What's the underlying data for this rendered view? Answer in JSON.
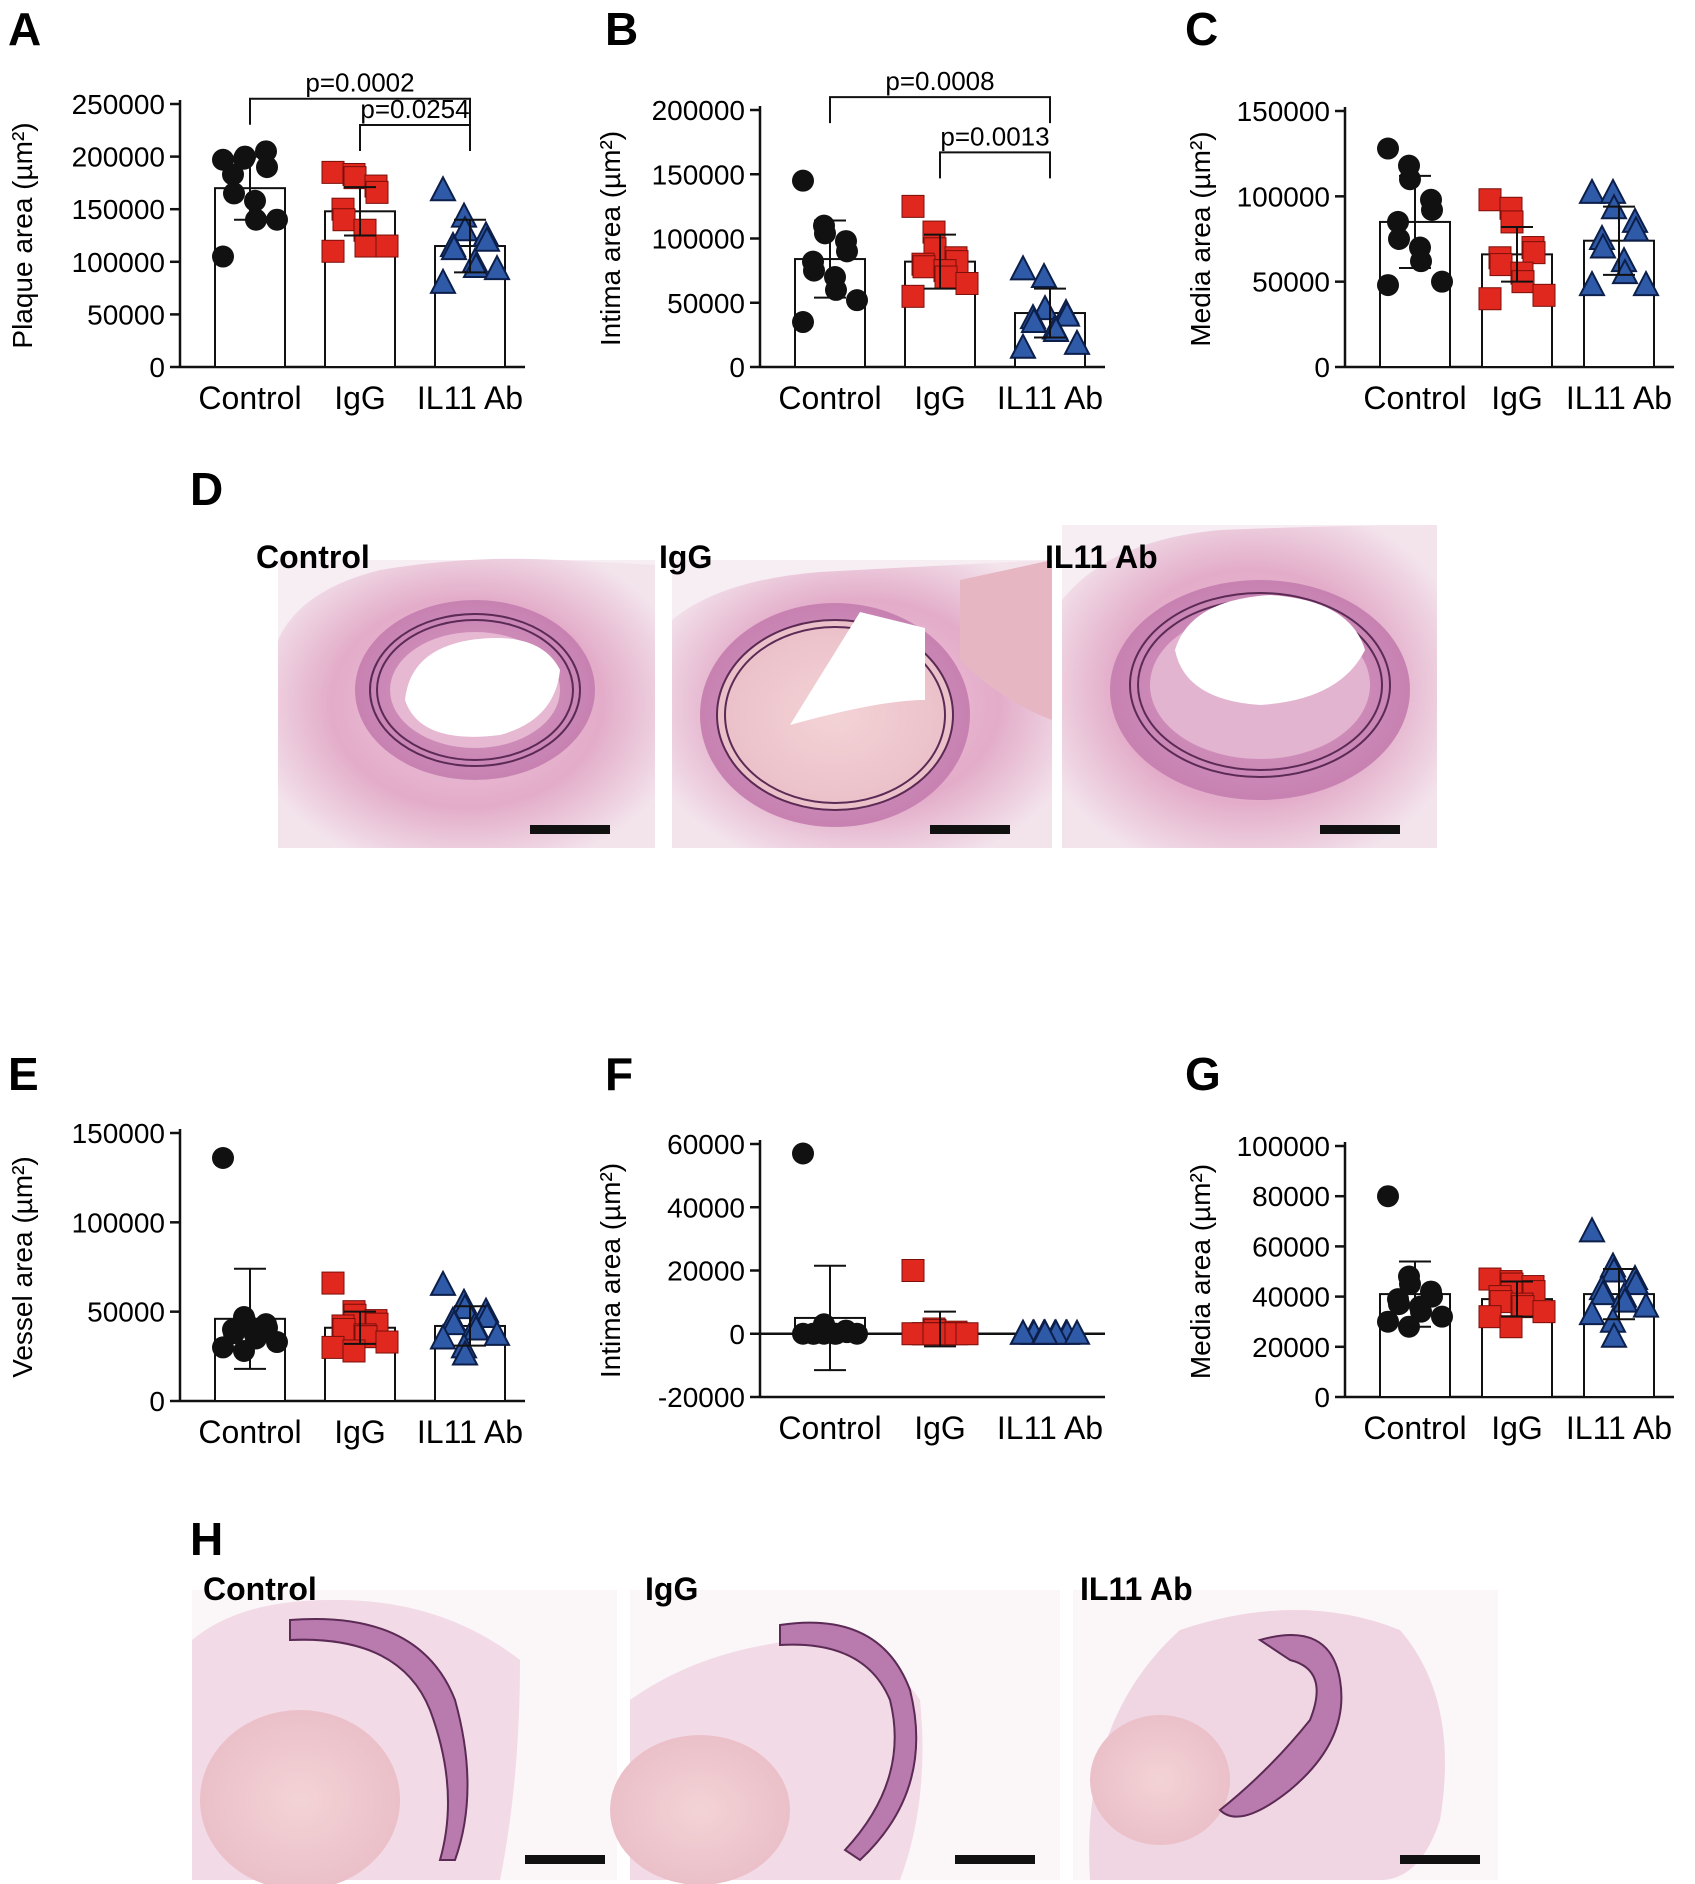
{
  "figure": {
    "colors": {
      "Control": "#111111",
      "IgG": "#e0281e",
      "IL11 Ab": "#2f5aa8"
    }
  },
  "chart_data": [
    {
      "id": "A",
      "panel_label": "A",
      "type": "scatter",
      "categories": [
        "Control",
        "IgG",
        "IL11 Ab"
      ],
      "ylabel": "Plaque area (µm²)",
      "ylim": [
        0,
        250000
      ],
      "yticks": [
        0,
        50000,
        100000,
        150000,
        200000,
        250000
      ],
      "yticklabels": [
        "0",
        "50000",
        "100000",
        "150000",
        "200000",
        "250000"
      ],
      "series": [
        {
          "name": "Control",
          "marker": "circle",
          "mean": 170000,
          "sd": 30000,
          "values": [
            197000,
            198000,
            200000,
            205000,
            190000,
            183000,
            165000,
            158000,
            140000,
            140000,
            105000
          ]
        },
        {
          "name": "IgG",
          "marker": "square",
          "mean": 148000,
          "sd": 23000,
          "values": [
            185000,
            183000,
            180000,
            172000,
            166000,
            150000,
            140000,
            130000,
            115000,
            115000,
            110000
          ]
        },
        {
          "name": "IL11 Ab",
          "marker": "triangle",
          "mean": 115000,
          "sd": 25000,
          "values": [
            168000,
            143000,
            130000,
            125000,
            120000,
            115000,
            112000,
            100000,
            95000,
            93000,
            80000
          ]
        }
      ],
      "significance": [
        {
          "from": 0,
          "to": 2,
          "label": "p=0.0002",
          "level": 255000
        },
        {
          "from": 1,
          "to": 2,
          "label": "p=0.0254",
          "level": 230000
        }
      ]
    },
    {
      "id": "B",
      "panel_label": "B",
      "type": "scatter",
      "categories": [
        "Control",
        "IgG",
        "IL11 Ab"
      ],
      "ylabel": "Intima area (µm²)",
      "ylim": [
        0,
        200000
      ],
      "yticks": [
        0,
        50000,
        100000,
        150000,
        200000
      ],
      "yticklabels": [
        "0",
        "50000",
        "100000",
        "150000",
        "200000"
      ],
      "series": [
        {
          "name": "Control",
          "marker": "circle",
          "mean": 84000,
          "sd": 30000,
          "values": [
            145000,
            110000,
            104000,
            98000,
            90000,
            82000,
            75000,
            70000,
            60000,
            52000,
            35000
          ]
        },
        {
          "name": "IgG",
          "marker": "square",
          "mean": 82000,
          "sd": 21000,
          "values": [
            125000,
            105000,
            92000,
            85000,
            82000,
            80000,
            78000,
            75000,
            70000,
            65000,
            55000
          ]
        },
        {
          "name": "IL11 Ab",
          "marker": "triangle",
          "mean": 42000,
          "sd": 19000,
          "values": [
            76000,
            70000,
            45000,
            42000,
            40000,
            38000,
            35000,
            30000,
            28000,
            18000,
            15000
          ]
        }
      ],
      "significance": [
        {
          "from": 0,
          "to": 2,
          "label": "p=0.0008",
          "level": 210000
        },
        {
          "from": 1,
          "to": 2,
          "label": "p=0.0013",
          "level": 167000
        }
      ]
    },
    {
      "id": "C",
      "panel_label": "C",
      "type": "scatter",
      "categories": [
        "Control",
        "IgG",
        "IL11 Ab"
      ],
      "ylabel": "Media area (µm²)",
      "ylim": [
        0,
        150000
      ],
      "yticks": [
        0,
        50000,
        100000,
        150000
      ],
      "yticklabels": [
        "0",
        "50000",
        "100000",
        "150000"
      ],
      "series": [
        {
          "name": "Control",
          "marker": "circle",
          "mean": 85000,
          "sd": 27000,
          "values": [
            128000,
            118000,
            110000,
            98000,
            92000,
            85000,
            75000,
            70000,
            62000,
            50000,
            48000
          ]
        },
        {
          "name": "IgG",
          "marker": "square",
          "mean": 66000,
          "sd": 16000,
          "values": [
            98000,
            93000,
            85000,
            70000,
            67000,
            64000,
            60000,
            55000,
            50000,
            42000,
            40000
          ]
        },
        {
          "name": "IL11 Ab",
          "marker": "triangle",
          "mean": 74000,
          "sd": 20000,
          "values": [
            102000,
            102000,
            93000,
            85000,
            80000,
            75000,
            70000,
            62000,
            55000,
            48000,
            48000
          ]
        }
      ],
      "significance": []
    },
    {
      "id": "E",
      "panel_label": "E",
      "type": "scatter",
      "categories": [
        "Control",
        "IgG",
        "IL11 Ab"
      ],
      "ylabel": "Vessel area (µm²)",
      "ylim": [
        0,
        150000
      ],
      "yticks": [
        0,
        50000,
        100000,
        150000
      ],
      "yticklabels": [
        "0",
        "50000",
        "100000",
        "150000"
      ],
      "series": [
        {
          "name": "Control",
          "marker": "circle",
          "mean": 46000,
          "sd": 28000,
          "values": [
            136000,
            47000,
            45000,
            43000,
            41000,
            40000,
            38000,
            37000,
            35000,
            33000,
            30000,
            28000
          ]
        },
        {
          "name": "IgG",
          "marker": "square",
          "mean": 41000,
          "sd": 9000,
          "values": [
            66000,
            50000,
            48000,
            45000,
            43000,
            42000,
            40000,
            37000,
            36000,
            33000,
            30000,
            28000
          ]
        },
        {
          "name": "IL11 Ab",
          "marker": "triangle",
          "mean": 42000,
          "sd": 11000,
          "values": [
            65000,
            55000,
            52000,
            50000,
            47000,
            45000,
            43000,
            42000,
            40000,
            37000,
            35000,
            30000,
            26000
          ]
        }
      ],
      "significance": []
    },
    {
      "id": "F",
      "panel_label": "F",
      "type": "scatter",
      "categories": [
        "Control",
        "IgG",
        "IL11 Ab"
      ],
      "ylabel": "Intima area (µm²)",
      "ylim": [
        -20000,
        60000
      ],
      "yticks": [
        -20000,
        0,
        20000,
        40000,
        60000
      ],
      "yticklabels": [
        "-20000",
        "0",
        "20000",
        "40000",
        "60000"
      ],
      "zeroline": true,
      "series": [
        {
          "name": "Control",
          "marker": "circle",
          "mean": 5000,
          "sd": 16500,
          "values": [
            57000,
            3000,
            2000,
            1000,
            500,
            0,
            0,
            0,
            0,
            0,
            0,
            0
          ]
        },
        {
          "name": "IgG",
          "marker": "square",
          "mean": 1500,
          "sd": 5500,
          "values": [
            20000,
            1500,
            1000,
            500,
            0,
            0,
            0,
            0,
            0,
            0,
            0,
            0
          ]
        },
        {
          "name": "IL11 Ab",
          "marker": "triangle",
          "mean": 0,
          "sd": 0,
          "values": [
            0,
            0,
            0,
            0,
            0,
            0,
            0,
            0,
            0,
            0,
            0,
            0,
            0
          ]
        }
      ],
      "significance": []
    },
    {
      "id": "G",
      "panel_label": "G",
      "type": "scatter",
      "categories": [
        "Control",
        "IgG",
        "IL11 Ab"
      ],
      "ylabel": "Media area (µm²)",
      "ylim": [
        0,
        100000
      ],
      "yticks": [
        0,
        20000,
        40000,
        60000,
        80000,
        100000
      ],
      "yticklabels": [
        "0",
        "20000",
        "40000",
        "60000",
        "80000",
        "100000"
      ],
      "series": [
        {
          "name": "Control",
          "marker": "circle",
          "mean": 41000,
          "sd": 13000,
          "values": [
            80000,
            48000,
            45000,
            42000,
            40000,
            39000,
            37000,
            36000,
            34000,
            32000,
            30000,
            28000
          ]
        },
        {
          "name": "IgG",
          "marker": "square",
          "mean": 39000,
          "sd": 7000,
          "values": [
            47000,
            46000,
            45000,
            44000,
            42000,
            40000,
            38000,
            37000,
            36000,
            34000,
            32000,
            28000
          ]
        },
        {
          "name": "IL11 Ab",
          "marker": "triangle",
          "mean": 41000,
          "sd": 10000,
          "values": [
            66000,
            52000,
            50000,
            47000,
            45000,
            43000,
            41000,
            40000,
            38000,
            36000,
            33000,
            30000,
            24000
          ]
        }
      ],
      "significance": []
    }
  ],
  "micrographs": [
    {
      "id": "D",
      "panel_label": "D",
      "labels": [
        "Control",
        "IgG",
        "IL11 Ab"
      ]
    },
    {
      "id": "H",
      "panel_label": "H",
      "labels": [
        "Control",
        "IgG",
        "IL11 Ab"
      ]
    }
  ]
}
